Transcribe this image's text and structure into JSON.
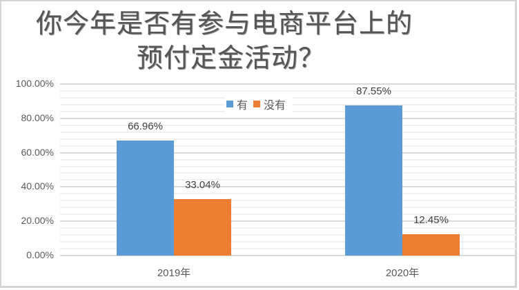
{
  "chart_data": {
    "type": "bar",
    "title": "你今年是否有参与电商平台上的预付定金活动？",
    "title_lines": [
      "你今年是否有参与电商平台上的",
      "预付定金活动？"
    ],
    "categories": [
      "2019年",
      "2020年"
    ],
    "series": [
      {
        "name": "有",
        "color": "#5b9bd5",
        "values": [
          66.96,
          87.55
        ],
        "labels": [
          "66.96%",
          "87.55%"
        ]
      },
      {
        "name": "没有",
        "color": "#ed7d31",
        "values": [
          33.04,
          12.45
        ],
        "labels": [
          "33.04%",
          "12.45%"
        ]
      }
    ],
    "xlabel": "",
    "ylabel": "",
    "ylim": [
      0,
      100
    ],
    "yticks": [
      "100.00%",
      "80.00%",
      "60.00%",
      "40.00%",
      "20.00%",
      "0.00%"
    ],
    "grid": true,
    "legend_position": "top"
  }
}
